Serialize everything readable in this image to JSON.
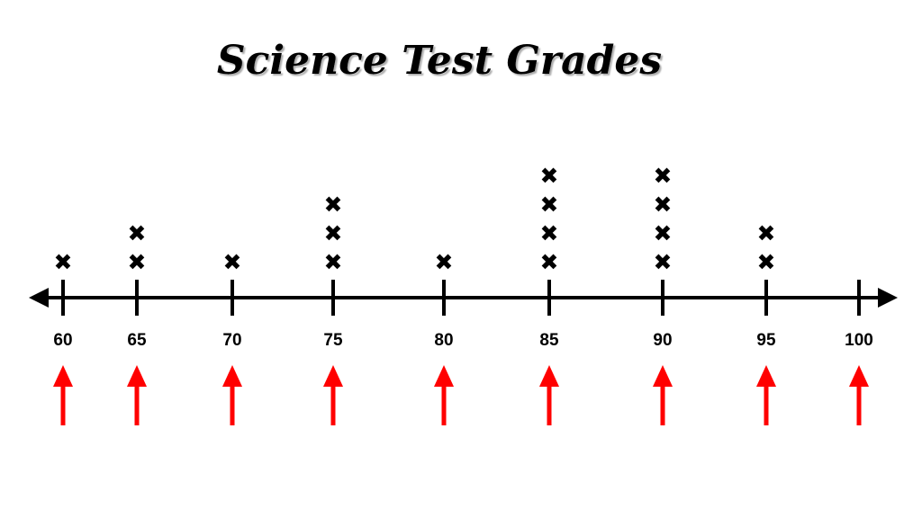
{
  "chart_data": {
    "type": "scatter",
    "title": "Science Test Grades",
    "xlabel": "",
    "ylabel": "",
    "x_ticks": [
      60,
      65,
      70,
      75,
      80,
      85,
      90,
      95,
      100
    ],
    "x_range": [
      60,
      100
    ],
    "points": [
      {
        "x": 60,
        "count": 1
      },
      {
        "x": 65,
        "count": 2
      },
      {
        "x": 70,
        "count": 1
      },
      {
        "x": 75,
        "count": 3
      },
      {
        "x": 80,
        "count": 1
      },
      {
        "x": 85,
        "count": 4
      },
      {
        "x": 90,
        "count": 4
      },
      {
        "x": 95,
        "count": 2
      },
      {
        "x": 100,
        "count": 0
      }
    ],
    "mark_symbol": "✖",
    "arrows_under_ticks": true,
    "grid": false,
    "legend": "none",
    "colors": {
      "axis": "#000000",
      "marks": "#000000",
      "arrows": "#ff0000"
    }
  }
}
